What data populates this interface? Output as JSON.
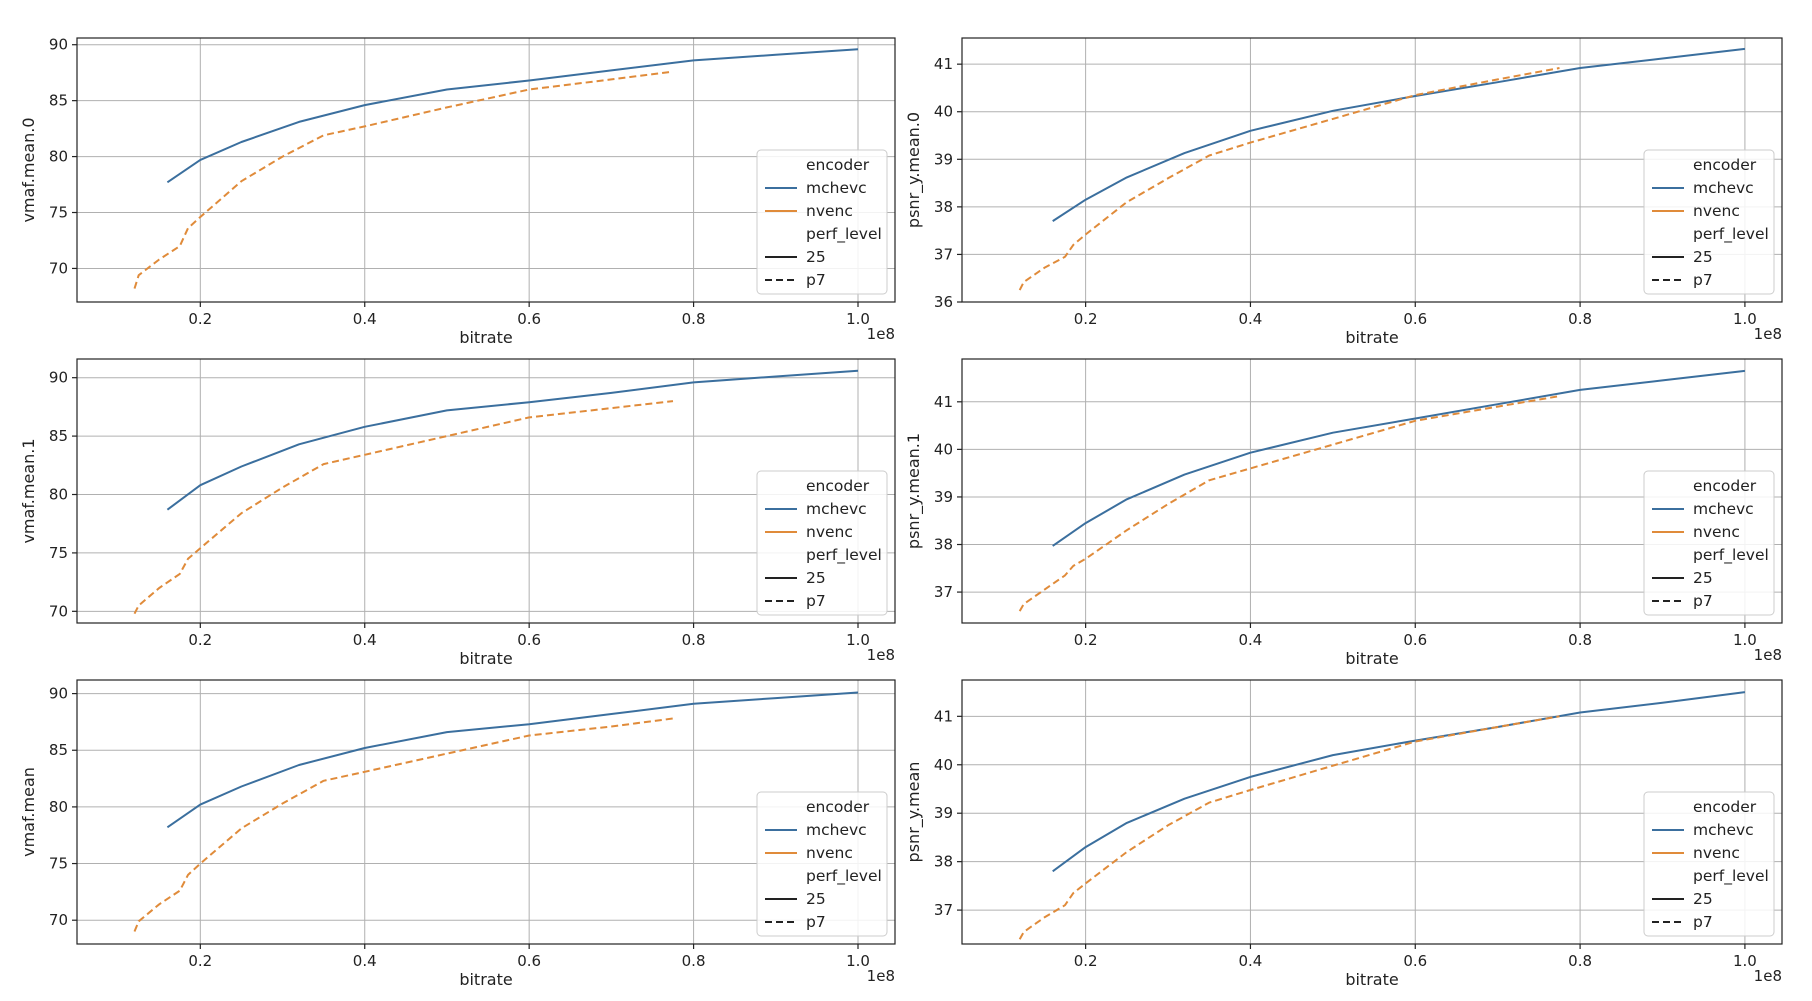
{
  "chart_data": [
    {
      "type": "line",
      "xlabel": "bitrate",
      "ylabel": "vmaf.mean.0",
      "x_offset_label": "1e8",
      "xlim": [
        0.05,
        1.045
      ],
      "ylim": [
        67.0,
        90.6
      ],
      "xticks": [
        0.2,
        0.4,
        0.6,
        0.8,
        1.0
      ],
      "xtick_labels": [
        "0.2",
        "0.4",
        "0.6",
        "0.8",
        "1.0"
      ],
      "yticks": [
        70,
        75,
        80,
        85,
        90
      ],
      "ytick_labels": [
        "70",
        "75",
        "80",
        "85",
        "90"
      ],
      "grid": true,
      "legend": {
        "placement": "lower-right",
        "hue_title": "encoder",
        "style_title": "perf_level",
        "style_entries": [
          {
            "label": "25",
            "dash": "solid"
          },
          {
            "label": "p7",
            "dash": "dashed"
          }
        ]
      },
      "series": [
        {
          "name": "mchevc",
          "color": "#3b6f9e",
          "style": "solid",
          "x": [
            0.16,
            0.2,
            0.25,
            0.32,
            0.4,
            0.5,
            0.6,
            0.7,
            0.8,
            0.9,
            1.0
          ],
          "y": [
            77.7,
            79.7,
            81.3,
            83.1,
            84.6,
            86.0,
            86.8,
            87.7,
            88.6,
            89.1,
            89.6
          ]
        },
        {
          "name": "nvenc",
          "color": "#e08b3a",
          "style": "dashed",
          "x": [
            0.12,
            0.125,
            0.15,
            0.175,
            0.185,
            0.2,
            0.25,
            0.3,
            0.35,
            0.4,
            0.5,
            0.6,
            0.7,
            0.775
          ],
          "y": [
            68.2,
            69.4,
            70.8,
            72.0,
            73.6,
            74.6,
            77.8,
            80.0,
            81.9,
            82.7,
            84.4,
            86.0,
            86.9,
            87.6
          ]
        }
      ]
    },
    {
      "type": "line",
      "xlabel": "bitrate",
      "ylabel": "psnr_y.mean.0",
      "x_offset_label": "1e8",
      "xlim": [
        0.05,
        1.045
      ],
      "ylim": [
        36.0,
        41.55
      ],
      "xticks": [
        0.2,
        0.4,
        0.6,
        0.8,
        1.0
      ],
      "xtick_labels": [
        "0.2",
        "0.4",
        "0.6",
        "0.8",
        "1.0"
      ],
      "yticks": [
        36,
        37,
        38,
        39,
        40,
        41
      ],
      "ytick_labels": [
        "36",
        "37",
        "38",
        "39",
        "40",
        "41"
      ],
      "grid": true,
      "legend": {
        "placement": "lower-right",
        "hue_title": "encoder",
        "style_title": "perf_level",
        "style_entries": [
          {
            "label": "25",
            "dash": "solid"
          },
          {
            "label": "p7",
            "dash": "dashed"
          }
        ]
      },
      "series": [
        {
          "name": "mchevc",
          "color": "#3b6f9e",
          "style": "solid",
          "x": [
            0.16,
            0.2,
            0.25,
            0.32,
            0.4,
            0.5,
            0.6,
            0.7,
            0.8,
            0.9,
            1.0
          ],
          "y": [
            37.7,
            38.15,
            38.62,
            39.13,
            39.6,
            40.02,
            40.33,
            40.62,
            40.92,
            41.12,
            41.32
          ]
        },
        {
          "name": "nvenc",
          "color": "#e08b3a",
          "style": "dashed",
          "x": [
            0.12,
            0.125,
            0.15,
            0.175,
            0.185,
            0.2,
            0.25,
            0.3,
            0.35,
            0.4,
            0.5,
            0.6,
            0.7,
            0.775
          ],
          "y": [
            36.25,
            36.42,
            36.72,
            36.95,
            37.2,
            37.42,
            38.1,
            38.6,
            39.08,
            39.35,
            39.85,
            40.35,
            40.68,
            40.92
          ]
        }
      ]
    },
    {
      "type": "line",
      "xlabel": "bitrate",
      "ylabel": "vmaf.mean.1",
      "x_offset_label": "1e8",
      "xlim": [
        0.05,
        1.045
      ],
      "ylim": [
        69.0,
        91.6
      ],
      "xticks": [
        0.2,
        0.4,
        0.6,
        0.8,
        1.0
      ],
      "xtick_labels": [
        "0.2",
        "0.4",
        "0.6",
        "0.8",
        "1.0"
      ],
      "yticks": [
        70,
        75,
        80,
        85,
        90
      ],
      "ytick_labels": [
        "70",
        "75",
        "80",
        "85",
        "90"
      ],
      "grid": true,
      "legend": {
        "placement": "lower-right",
        "hue_title": "encoder",
        "style_title": "perf_level",
        "style_entries": [
          {
            "label": "25",
            "dash": "solid"
          },
          {
            "label": "p7",
            "dash": "dashed"
          }
        ]
      },
      "series": [
        {
          "name": "mchevc",
          "color": "#3b6f9e",
          "style": "solid",
          "x": [
            0.16,
            0.2,
            0.25,
            0.32,
            0.4,
            0.5,
            0.6,
            0.7,
            0.8,
            0.9,
            1.0
          ],
          "y": [
            78.7,
            80.8,
            82.4,
            84.3,
            85.8,
            87.2,
            87.9,
            88.7,
            89.6,
            90.1,
            90.6
          ]
        },
        {
          "name": "nvenc",
          "color": "#e08b3a",
          "style": "dashed",
          "x": [
            0.12,
            0.125,
            0.15,
            0.175,
            0.185,
            0.2,
            0.25,
            0.3,
            0.35,
            0.4,
            0.5,
            0.6,
            0.7,
            0.775
          ],
          "y": [
            69.8,
            70.5,
            72.0,
            73.2,
            74.5,
            75.4,
            78.4,
            80.6,
            82.6,
            83.4,
            85.0,
            86.6,
            87.4,
            88.0
          ]
        }
      ]
    },
    {
      "type": "line",
      "xlabel": "bitrate",
      "ylabel": "psnr_y.mean.1",
      "x_offset_label": "1e8",
      "xlim": [
        0.05,
        1.045
      ],
      "ylim": [
        36.35,
        41.9
      ],
      "xticks": [
        0.2,
        0.4,
        0.6,
        0.8,
        1.0
      ],
      "xtick_labels": [
        "0.2",
        "0.4",
        "0.6",
        "0.8",
        "1.0"
      ],
      "yticks": [
        37,
        38,
        39,
        40,
        41
      ],
      "ytick_labels": [
        "37",
        "38",
        "39",
        "40",
        "41"
      ],
      "grid": true,
      "legend": {
        "placement": "lower-right",
        "hue_title": "encoder",
        "style_title": "perf_level",
        "style_entries": [
          {
            "label": "25",
            "dash": "solid"
          },
          {
            "label": "p7",
            "dash": "dashed"
          }
        ]
      },
      "series": [
        {
          "name": "mchevc",
          "color": "#3b6f9e",
          "style": "solid",
          "x": [
            0.16,
            0.2,
            0.25,
            0.32,
            0.4,
            0.5,
            0.6,
            0.7,
            0.8,
            0.9,
            1.0
          ],
          "y": [
            37.97,
            38.45,
            38.95,
            39.47,
            39.93,
            40.35,
            40.65,
            40.95,
            41.25,
            41.45,
            41.65
          ]
        },
        {
          "name": "nvenc",
          "color": "#e08b3a",
          "style": "dashed",
          "x": [
            0.12,
            0.125,
            0.15,
            0.175,
            0.185,
            0.2,
            0.25,
            0.3,
            0.35,
            0.4,
            0.5,
            0.6,
            0.7,
            0.775
          ],
          "y": [
            36.6,
            36.75,
            37.05,
            37.35,
            37.55,
            37.7,
            38.3,
            38.85,
            39.35,
            39.6,
            40.1,
            40.6,
            40.9,
            41.12
          ]
        }
      ]
    },
    {
      "type": "line",
      "xlabel": "bitrate",
      "ylabel": "vmaf.mean",
      "x_offset_label": "1e8",
      "xlim": [
        0.05,
        1.045
      ],
      "ylim": [
        67.9,
        91.2
      ],
      "xticks": [
        0.2,
        0.4,
        0.6,
        0.8,
        1.0
      ],
      "xtick_labels": [
        "0.2",
        "0.4",
        "0.6",
        "0.8",
        "1.0"
      ],
      "yticks": [
        70,
        75,
        80,
        85,
        90
      ],
      "ytick_labels": [
        "70",
        "75",
        "80",
        "85",
        "90"
      ],
      "grid": true,
      "legend": {
        "placement": "lower-right",
        "hue_title": "encoder",
        "style_title": "perf_level",
        "style_entries": [
          {
            "label": "25",
            "dash": "solid"
          },
          {
            "label": "p7",
            "dash": "dashed"
          }
        ]
      },
      "series": [
        {
          "name": "mchevc",
          "color": "#3b6f9e",
          "style": "solid",
          "x": [
            0.16,
            0.2,
            0.25,
            0.32,
            0.4,
            0.5,
            0.6,
            0.7,
            0.8,
            0.9,
            1.0
          ],
          "y": [
            78.2,
            80.2,
            81.8,
            83.7,
            85.2,
            86.6,
            87.3,
            88.2,
            89.1,
            89.6,
            90.1
          ]
        },
        {
          "name": "nvenc",
          "color": "#e08b3a",
          "style": "dashed",
          "x": [
            0.12,
            0.125,
            0.15,
            0.175,
            0.185,
            0.2,
            0.25,
            0.3,
            0.35,
            0.4,
            0.5,
            0.6,
            0.7,
            0.775
          ],
          "y": [
            69.0,
            69.9,
            71.4,
            72.6,
            74.0,
            75.0,
            78.1,
            80.3,
            82.3,
            83.1,
            84.7,
            86.3,
            87.1,
            87.8
          ]
        }
      ]
    },
    {
      "type": "line",
      "xlabel": "bitrate",
      "ylabel": "psnr_y.mean",
      "x_offset_label": "1e8",
      "xlim": [
        0.05,
        1.045
      ],
      "ylim": [
        36.3,
        41.75
      ],
      "xticks": [
        0.2,
        0.4,
        0.6,
        0.8,
        1.0
      ],
      "xtick_labels": [
        "0.2",
        "0.4",
        "0.6",
        "0.8",
        "1.0"
      ],
      "yticks": [
        37,
        38,
        39,
        40,
        41
      ],
      "ytick_labels": [
        "37",
        "38",
        "39",
        "40",
        "41"
      ],
      "grid": true,
      "legend": {
        "placement": "lower-right",
        "hue_title": "encoder",
        "style_title": "perf_level",
        "style_entries": [
          {
            "label": "25",
            "dash": "solid"
          },
          {
            "label": "p7",
            "dash": "dashed"
          }
        ]
      },
      "series": [
        {
          "name": "mchevc",
          "color": "#3b6f9e",
          "style": "solid",
          "x": [
            0.16,
            0.2,
            0.25,
            0.32,
            0.4,
            0.5,
            0.6,
            0.7,
            0.8,
            0.9,
            1.0
          ],
          "y": [
            37.8,
            38.3,
            38.8,
            39.3,
            39.75,
            40.2,
            40.5,
            40.78,
            41.08,
            41.28,
            41.5
          ]
        },
        {
          "name": "nvenc",
          "color": "#e08b3a",
          "style": "dashed",
          "x": [
            0.12,
            0.125,
            0.15,
            0.175,
            0.185,
            0.2,
            0.25,
            0.3,
            0.35,
            0.4,
            0.5,
            0.6,
            0.7,
            0.775
          ],
          "y": [
            36.4,
            36.55,
            36.85,
            37.1,
            37.35,
            37.55,
            38.2,
            38.75,
            39.22,
            39.48,
            39.98,
            40.48,
            40.78,
            41.0
          ]
        }
      ]
    }
  ]
}
